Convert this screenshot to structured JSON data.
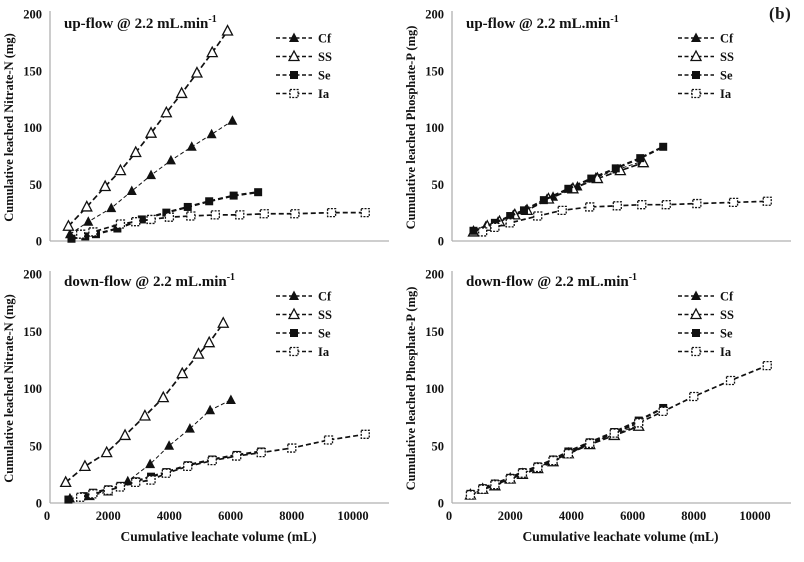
{
  "figure_label": "(b)",
  "colors": {
    "ink": "#111111",
    "axis": "#b0b0b0",
    "background": "#ffffff"
  },
  "x_axis": {
    "label": "Cumulative leachate volume (mL)",
    "ticks": [
      0,
      2000,
      4000,
      6000,
      8000,
      10000
    ],
    "range": [
      0,
      11000
    ]
  },
  "y_axis": {
    "ticks": [
      0,
      50,
      100,
      150,
      200
    ],
    "range": [
      0,
      200
    ]
  },
  "legend": {
    "position": "top-right-inside",
    "entries": [
      {
        "name": "Cf",
        "marker": "filled-triangle"
      },
      {
        "name": "SS",
        "marker": "open-triangle"
      },
      {
        "name": "Se",
        "marker": "filled-square"
      },
      {
        "name": "Ia",
        "marker": "open-square"
      }
    ]
  },
  "chart_data": [
    {
      "id": "upflow-nitrate",
      "type": "line",
      "row": "top",
      "title_main": "up-flow @ 2.2 mL.min",
      "title_sup": "-1",
      "xlabel": "",
      "ylabel": "Cumulative leached Nitrate-N (mg)",
      "xlim": [
        0,
        11000
      ],
      "ylim": [
        0,
        200
      ],
      "show_x_ticks": false,
      "series": [
        {
          "name": "Cf",
          "marker": "filled-triangle",
          "points": [
            [
              750,
              6
            ],
            [
              1350,
              17
            ],
            [
              2100,
              29
            ],
            [
              2770,
              44
            ],
            [
              3400,
              58
            ],
            [
              4050,
              71
            ],
            [
              4730,
              83
            ],
            [
              5380,
              94
            ],
            [
              6060,
              106
            ]
          ]
        },
        {
          "name": "SS",
          "marker": "open-triangle",
          "points": [
            [
              700,
              13
            ],
            [
              1300,
              30
            ],
            [
              1900,
              48
            ],
            [
              2400,
              62
            ],
            [
              2900,
              78
            ],
            [
              3400,
              95
            ],
            [
              3900,
              113
            ],
            [
              4400,
              130
            ],
            [
              4900,
              148
            ],
            [
              5400,
              166
            ],
            [
              5900,
              185
            ]
          ]
        },
        {
          "name": "Se",
          "marker": "filled-square",
          "points": [
            [
              800,
              2
            ],
            [
              1250,
              4
            ],
            [
              1600,
              6
            ],
            [
              2300,
              11
            ],
            [
              3100,
              19
            ],
            [
              3900,
              25
            ],
            [
              4600,
              30
            ],
            [
              5300,
              35
            ],
            [
              6100,
              40
            ],
            [
              6900,
              43
            ]
          ]
        },
        {
          "name": "Ia",
          "marker": "open-square",
          "points": [
            [
              1100,
              6
            ],
            [
              1500,
              8
            ],
            [
              2400,
              15
            ],
            [
              2900,
              17
            ],
            [
              3400,
              19
            ],
            [
              4000,
              21
            ],
            [
              4700,
              22
            ],
            [
              5500,
              23
            ],
            [
              6300,
              23
            ],
            [
              7100,
              24
            ],
            [
              8100,
              24
            ],
            [
              9300,
              25
            ],
            [
              10400,
              25
            ]
          ]
        }
      ]
    },
    {
      "id": "upflow-phosphate",
      "type": "line",
      "row": "top",
      "title_main": "up-flow @ 2.2 mL.min",
      "title_sup": "-1",
      "xlabel": "",
      "ylabel": "Cumulative leached Phosphate-P (mg)",
      "xlim": [
        0,
        11000
      ],
      "ylim": [
        0,
        200
      ],
      "show_x_ticks": false,
      "series": [
        {
          "name": "Cf",
          "marker": "filled-triangle",
          "points": [
            [
              800,
              8
            ],
            [
              1200,
              13
            ],
            [
              1600,
              17
            ],
            [
              2100,
              23
            ],
            [
              2500,
              27
            ],
            [
              3200,
              37
            ],
            [
              3400,
              39
            ],
            [
              4000,
              46
            ],
            [
              4200,
              48
            ],
            [
              4800,
              56
            ],
            [
              5500,
              63
            ],
            [
              6300,
              70
            ]
          ]
        },
        {
          "name": "SS",
          "marker": "open-triangle",
          "points": [
            [
              800,
              8
            ],
            [
              1250,
              13
            ],
            [
              1650,
              17
            ],
            [
              2150,
              23
            ],
            [
              2550,
              27
            ],
            [
              3250,
              37
            ],
            [
              4050,
              46
            ],
            [
              4850,
              55
            ],
            [
              5600,
              62
            ],
            [
              6350,
              69
            ]
          ]
        },
        {
          "name": "Se",
          "marker": "filled-square",
          "points": [
            [
              800,
              9
            ],
            [
              1500,
              16
            ],
            [
              2000,
              22
            ],
            [
              2450,
              27
            ],
            [
              3100,
              36
            ],
            [
              3900,
              46
            ],
            [
              4650,
              55
            ],
            [
              5450,
              64
            ],
            [
              6250,
              73
            ],
            [
              7000,
              83
            ]
          ]
        },
        {
          "name": "Ia",
          "marker": "open-square",
          "points": [
            [
              1100,
              8
            ],
            [
              1500,
              12
            ],
            [
              2000,
              16
            ],
            [
              2900,
              22
            ],
            [
              3700,
              27
            ],
            [
              4600,
              30
            ],
            [
              5500,
              31
            ],
            [
              6300,
              32
            ],
            [
              7100,
              32
            ],
            [
              8100,
              33
            ],
            [
              9300,
              34
            ],
            [
              10400,
              35
            ]
          ]
        }
      ]
    },
    {
      "id": "downflow-nitrate",
      "type": "line",
      "row": "bottom",
      "title_main": "down-flow @ 2.2 mL.min",
      "title_sup": "-1",
      "xlabel": "Cumulative leachate volume (mL)",
      "ylabel": "Cumulative leached Nitrate-N (mg)",
      "xlim": [
        0,
        11000
      ],
      "ylim": [
        0,
        200
      ],
      "show_x_ticks": true,
      "series": [
        {
          "name": "Cf",
          "marker": "filled-triangle",
          "points": [
            [
              750,
              4
            ],
            [
              1400,
              6
            ],
            [
              2000,
              10
            ],
            [
              2640,
              19
            ],
            [
              3370,
              34
            ],
            [
              3990,
              50
            ],
            [
              4670,
              65
            ],
            [
              5330,
              81
            ],
            [
              6010,
              90
            ]
          ]
        },
        {
          "name": "SS",
          "marker": "open-triangle",
          "points": [
            [
              610,
              18
            ],
            [
              1240,
              32
            ],
            [
              1950,
              44
            ],
            [
              2550,
              59
            ],
            [
              3200,
              76
            ],
            [
              3800,
              92
            ],
            [
              4420,
              113
            ],
            [
              4950,
              130
            ],
            [
              5300,
              140
            ],
            [
              5760,
              157
            ]
          ]
        },
        {
          "name": "Se",
          "marker": "filled-square",
          "points": [
            [
              700,
              3
            ],
            [
              1200,
              6
            ],
            [
              1500,
              9
            ],
            [
              2000,
              12
            ],
            [
              2400,
              15
            ],
            [
              2900,
              19
            ],
            [
              3400,
              23
            ],
            [
              3900,
              27
            ],
            [
              4600,
              33
            ],
            [
              5400,
              38
            ],
            [
              6200,
              42
            ],
            [
              7000,
              45
            ]
          ]
        },
        {
          "name": "Ia",
          "marker": "open-square",
          "points": [
            [
              1100,
              5
            ],
            [
              1500,
              8
            ],
            [
              2000,
              11
            ],
            [
              2400,
              14
            ],
            [
              2900,
              18
            ],
            [
              3400,
              20
            ],
            [
              3900,
              26
            ],
            [
              4600,
              32
            ],
            [
              5400,
              37
            ],
            [
              6200,
              41
            ],
            [
              7000,
              44
            ],
            [
              8000,
              48
            ],
            [
              9200,
              55
            ],
            [
              10400,
              60
            ]
          ]
        }
      ]
    },
    {
      "id": "downflow-phosphate",
      "type": "line",
      "row": "bottom",
      "title_main": "down-flow @ 2.2 mL.min",
      "title_sup": "-1",
      "xlabel": "Cumulative leachate volume (mL)",
      "ylabel": "Cumulative leached Phosphate-P (mg)",
      "xlim": [
        0,
        11000
      ],
      "ylim": [
        0,
        200
      ],
      "show_x_ticks": true,
      "series": [
        {
          "name": "Cf",
          "marker": "filled-triangle",
          "points": [
            [
              700,
              7
            ],
            [
              1100,
              12
            ],
            [
              1500,
              16
            ],
            [
              2000,
              21
            ],
            [
              2400,
              26
            ],
            [
              2900,
              31
            ],
            [
              3400,
              37
            ],
            [
              3900,
              44
            ],
            [
              4600,
              52
            ],
            [
              5400,
              60
            ],
            [
              6200,
              68
            ]
          ]
        },
        {
          "name": "SS",
          "marker": "open-triangle",
          "points": [
            [
              700,
              7
            ],
            [
              1100,
              12
            ],
            [
              1500,
              15
            ],
            [
              2000,
              21
            ],
            [
              2400,
              25
            ],
            [
              2900,
              30
            ],
            [
              3400,
              36
            ],
            [
              3900,
              43
            ],
            [
              4600,
              51
            ],
            [
              5400,
              59
            ],
            [
              6200,
              67
            ]
          ]
        },
        {
          "name": "Se",
          "marker": "filled-square",
          "points": [
            [
              700,
              8
            ],
            [
              1100,
              13
            ],
            [
              1500,
              17
            ],
            [
              2000,
              22
            ],
            [
              2400,
              27
            ],
            [
              2900,
              32
            ],
            [
              3400,
              38
            ],
            [
              3900,
              45
            ],
            [
              4600,
              53
            ],
            [
              5400,
              62
            ],
            [
              6200,
              72
            ],
            [
              7000,
              83
            ]
          ]
        },
        {
          "name": "Ia",
          "marker": "open-square",
          "points": [
            [
              700,
              7
            ],
            [
              1100,
              12
            ],
            [
              1500,
              16
            ],
            [
              2000,
              21
            ],
            [
              2400,
              26
            ],
            [
              2900,
              31
            ],
            [
              3400,
              37
            ],
            [
              3900,
              43
            ],
            [
              4600,
              52
            ],
            [
              5400,
              61
            ],
            [
              6200,
              70
            ],
            [
              7000,
              80
            ],
            [
              8000,
              93
            ],
            [
              9200,
              107
            ],
            [
              10400,
              120
            ]
          ]
        }
      ]
    }
  ]
}
